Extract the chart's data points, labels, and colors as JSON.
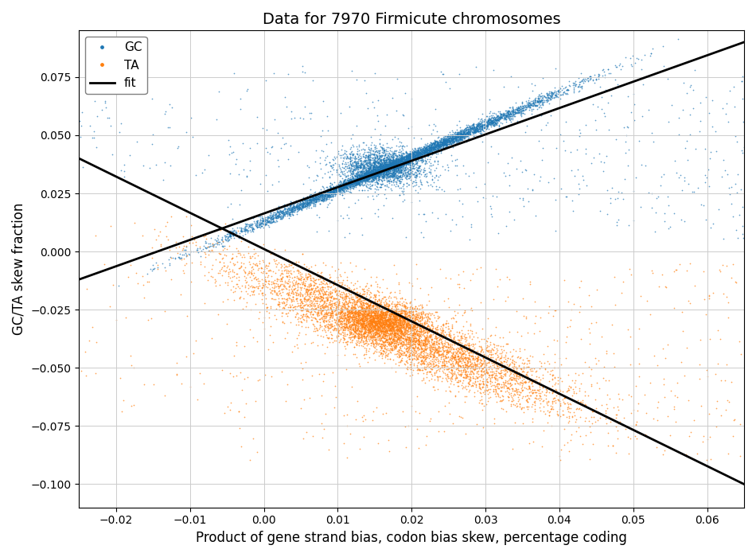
{
  "title": "Data for 7970 Firmicute chromosomes",
  "xlabel": "Product of gene strand bias, codon bias skew, percentage coding",
  "ylabel": "GC/TA skew fraction",
  "xlim": [
    -0.025,
    0.065
  ],
  "ylim": [
    -0.11,
    0.095
  ],
  "gc_color": "#1f77b4",
  "ta_color": "#ff7f0e",
  "fit_color": "black",
  "point_size": 1.5,
  "alpha": 0.7,
  "gc_fit_x": [
    -0.025,
    0.065
  ],
  "gc_fit_y": [
    -0.012,
    0.09
  ],
  "ta_fit_x": [
    -0.025,
    0.065
  ],
  "ta_fit_y": [
    0.04,
    -0.1
  ],
  "legend_labels": [
    "GC",
    "TA",
    "fit"
  ],
  "grid": true,
  "random_seed": 42,
  "n_gc_core": 5500,
  "n_gc_sparse": 600,
  "n_ta_core": 5500,
  "n_ta_sparse": 600
}
